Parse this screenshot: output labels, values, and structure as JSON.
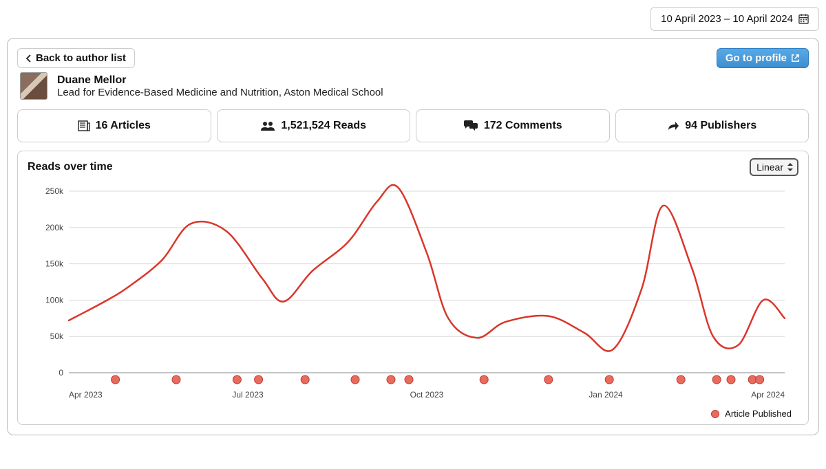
{
  "date_range": {
    "label": "10 April 2023 – 10 April 2024"
  },
  "nav": {
    "back_label": "Back to author list",
    "profile_label": "Go to profile"
  },
  "author": {
    "name": "Duane Mellor",
    "title": "Lead for Evidence-Based Medicine and Nutrition, Aston Medical School"
  },
  "stats": {
    "articles": {
      "icon": "newspaper-icon",
      "value": "16",
      "label": "Articles"
    },
    "reads": {
      "icon": "people-icon",
      "value": "1,521,524",
      "label": "Reads"
    },
    "comments": {
      "icon": "comments-icon",
      "value": "172",
      "label": "Comments"
    },
    "publishers": {
      "icon": "share-icon",
      "value": "94",
      "label": "Publishers"
    }
  },
  "chart": {
    "title": "Reads over time",
    "scale_selected": "Linear",
    "type": "line",
    "line_color": "#d9362a",
    "line_width": 2.5,
    "marker_color_fill": "#e86b5f",
    "marker_color_stroke": "#c23b2e",
    "marker_radius": 6,
    "background_color": "#ffffff",
    "grid_color": "#d9d9d9",
    "axis_color": "#888888",
    "text_color": "#444444",
    "ylim": [
      0,
      250000
    ],
    "ytick_step": 50000,
    "ytick_labels": [
      "0",
      "50k",
      "100k",
      "150k",
      "200k",
      "250k"
    ],
    "x_categories": [
      "Apr 2023",
      "Jul 2023",
      "Oct 2023",
      "Jan 2024",
      "Apr 2024"
    ],
    "x_major_positions": [
      0,
      0.25,
      0.5,
      0.75,
      1.0
    ],
    "series": {
      "x": [
        0.0,
        0.05,
        0.083,
        0.13,
        0.17,
        0.22,
        0.27,
        0.3,
        0.34,
        0.39,
        0.43,
        0.46,
        0.5,
        0.53,
        0.57,
        0.61,
        0.67,
        0.72,
        0.76,
        0.8,
        0.83,
        0.87,
        0.9,
        0.935,
        0.97,
        1.0
      ],
      "y": [
        72000,
        98000,
        118000,
        155000,
        205000,
        195000,
        130000,
        98000,
        140000,
        180000,
        235000,
        255000,
        165000,
        75000,
        48000,
        70000,
        78000,
        55000,
        32000,
        115000,
        230000,
        145000,
        50000,
        38000,
        100000,
        75000
      ]
    },
    "article_markers_x": [
      0.065,
      0.15,
      0.235,
      0.265,
      0.33,
      0.4,
      0.45,
      0.475,
      0.58,
      0.67,
      0.755,
      0.855,
      0.905,
      0.925,
      0.955,
      0.965
    ],
    "legend_label": "Article Published"
  }
}
